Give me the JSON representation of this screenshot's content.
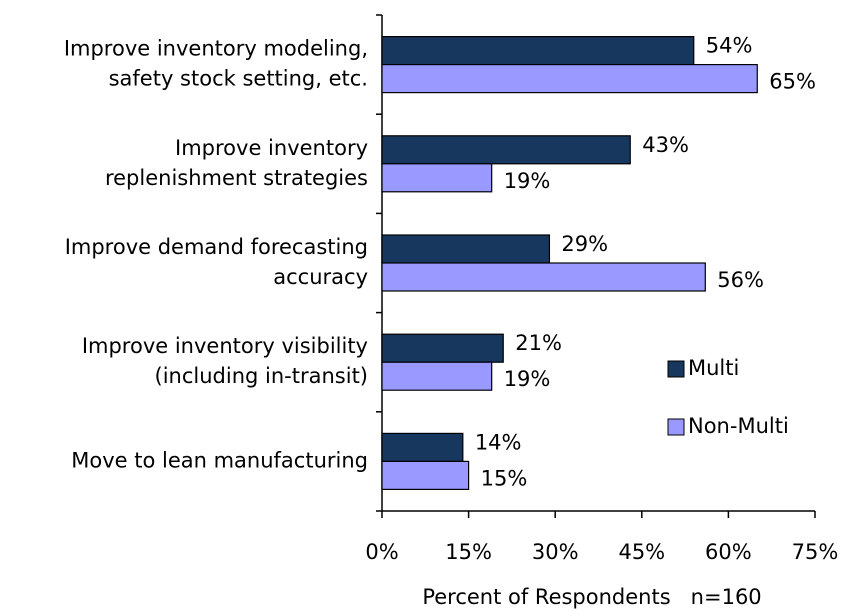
{
  "chart_data": {
    "type": "barh",
    "categories": [
      [
        "Improve inventory modeling,",
        "safety stock setting, etc."
      ],
      [
        "Improve inventory",
        "replenishment strategies"
      ],
      [
        "Improve demand forecasting",
        "accuracy"
      ],
      [
        "Improve inventory visibility",
        "(including in-transit)"
      ],
      [
        "Move to lean manufacturing"
      ]
    ],
    "series": [
      {
        "name": "Multi",
        "color": "#17375e",
        "values": [
          54,
          43,
          29,
          21,
          14
        ],
        "value_labels": [
          "54%",
          "43%",
          "29%",
          "21%",
          "14%"
        ]
      },
      {
        "name": "Non-Multi",
        "color": "#9999ff",
        "values": [
          65,
          19,
          56,
          19,
          15
        ],
        "value_labels": [
          "65%",
          "19%",
          "56%",
          "19%",
          "15%"
        ]
      }
    ],
    "xlim": [
      0,
      75
    ],
    "xticks": [
      {
        "value": 0,
        "label": "0%"
      },
      {
        "value": 15,
        "label": "15%"
      },
      {
        "value": 30,
        "label": "30%"
      },
      {
        "value": 45,
        "label": "45%"
      },
      {
        "value": 60,
        "label": "60%"
      },
      {
        "value": 75,
        "label": "75%"
      }
    ],
    "xlabel": "Percent of Respondents   n=160",
    "legend": "right"
  }
}
